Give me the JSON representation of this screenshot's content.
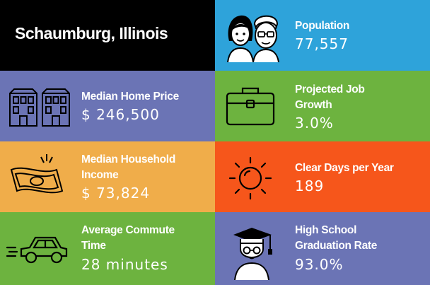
{
  "title": "Schaumburg, Illinois",
  "colors": {
    "black": "#000000",
    "blue": "#2ea3da",
    "purple": "#6b74b5",
    "green": "#6db33f",
    "amber": "#f0ad4a",
    "orange": "#f6561b"
  },
  "stats": {
    "population": {
      "label": "Population",
      "value": "77,557",
      "icon": "people-icon"
    },
    "home_price": {
      "label": "Median Home Price",
      "value": "$ 246,500",
      "icon": "houses-icon"
    },
    "job_growth": {
      "label_line1": "Projected Job",
      "label_line2": "Growth",
      "value": "3.0%",
      "icon": "briefcase-icon"
    },
    "income": {
      "label_line1": "Median Household",
      "label_line2": "Income",
      "value": "$ 73,824",
      "icon": "money-icon"
    },
    "clear_days": {
      "label": "Clear Days per Year",
      "value": "189",
      "icon": "sun-icon"
    },
    "commute": {
      "label_line1": "Average Commute",
      "label_line2": "Time",
      "value": "28 minutes",
      "icon": "car-icon"
    },
    "graduation": {
      "label_line1": "High School",
      "label_line2": "Graduation Rate",
      "value": "93.0%",
      "icon": "graduate-icon"
    }
  }
}
